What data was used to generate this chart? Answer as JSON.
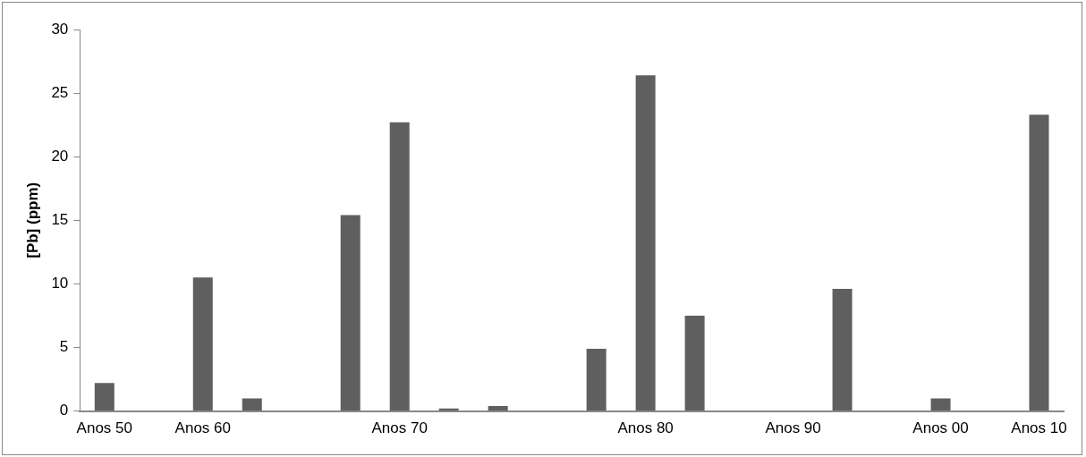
{
  "chart_data": {
    "type": "bar",
    "ylabel": "[Pb] (ppm)",
    "categories": [
      "Anos 50",
      null,
      "Anos 60",
      null,
      null,
      null,
      "Anos 70",
      null,
      null,
      null,
      null,
      "Anos 80",
      null,
      null,
      "Anos 90",
      null,
      null,
      "Anos 00",
      null,
      "Anos 10"
    ],
    "values": [
      2.2,
      null,
      10.5,
      1.0,
      null,
      15.4,
      22.7,
      0.2,
      0.4,
      null,
      4.9,
      26.4,
      7.5,
      null,
      0.05,
      9.6,
      null,
      1.0,
      null,
      23.3
    ],
    "color": "#5f5f5f",
    "ylim": [
      0,
      30
    ],
    "yticks": [
      0,
      5,
      10,
      15,
      20,
      25,
      30
    ],
    "grid": false,
    "legend": false
  }
}
